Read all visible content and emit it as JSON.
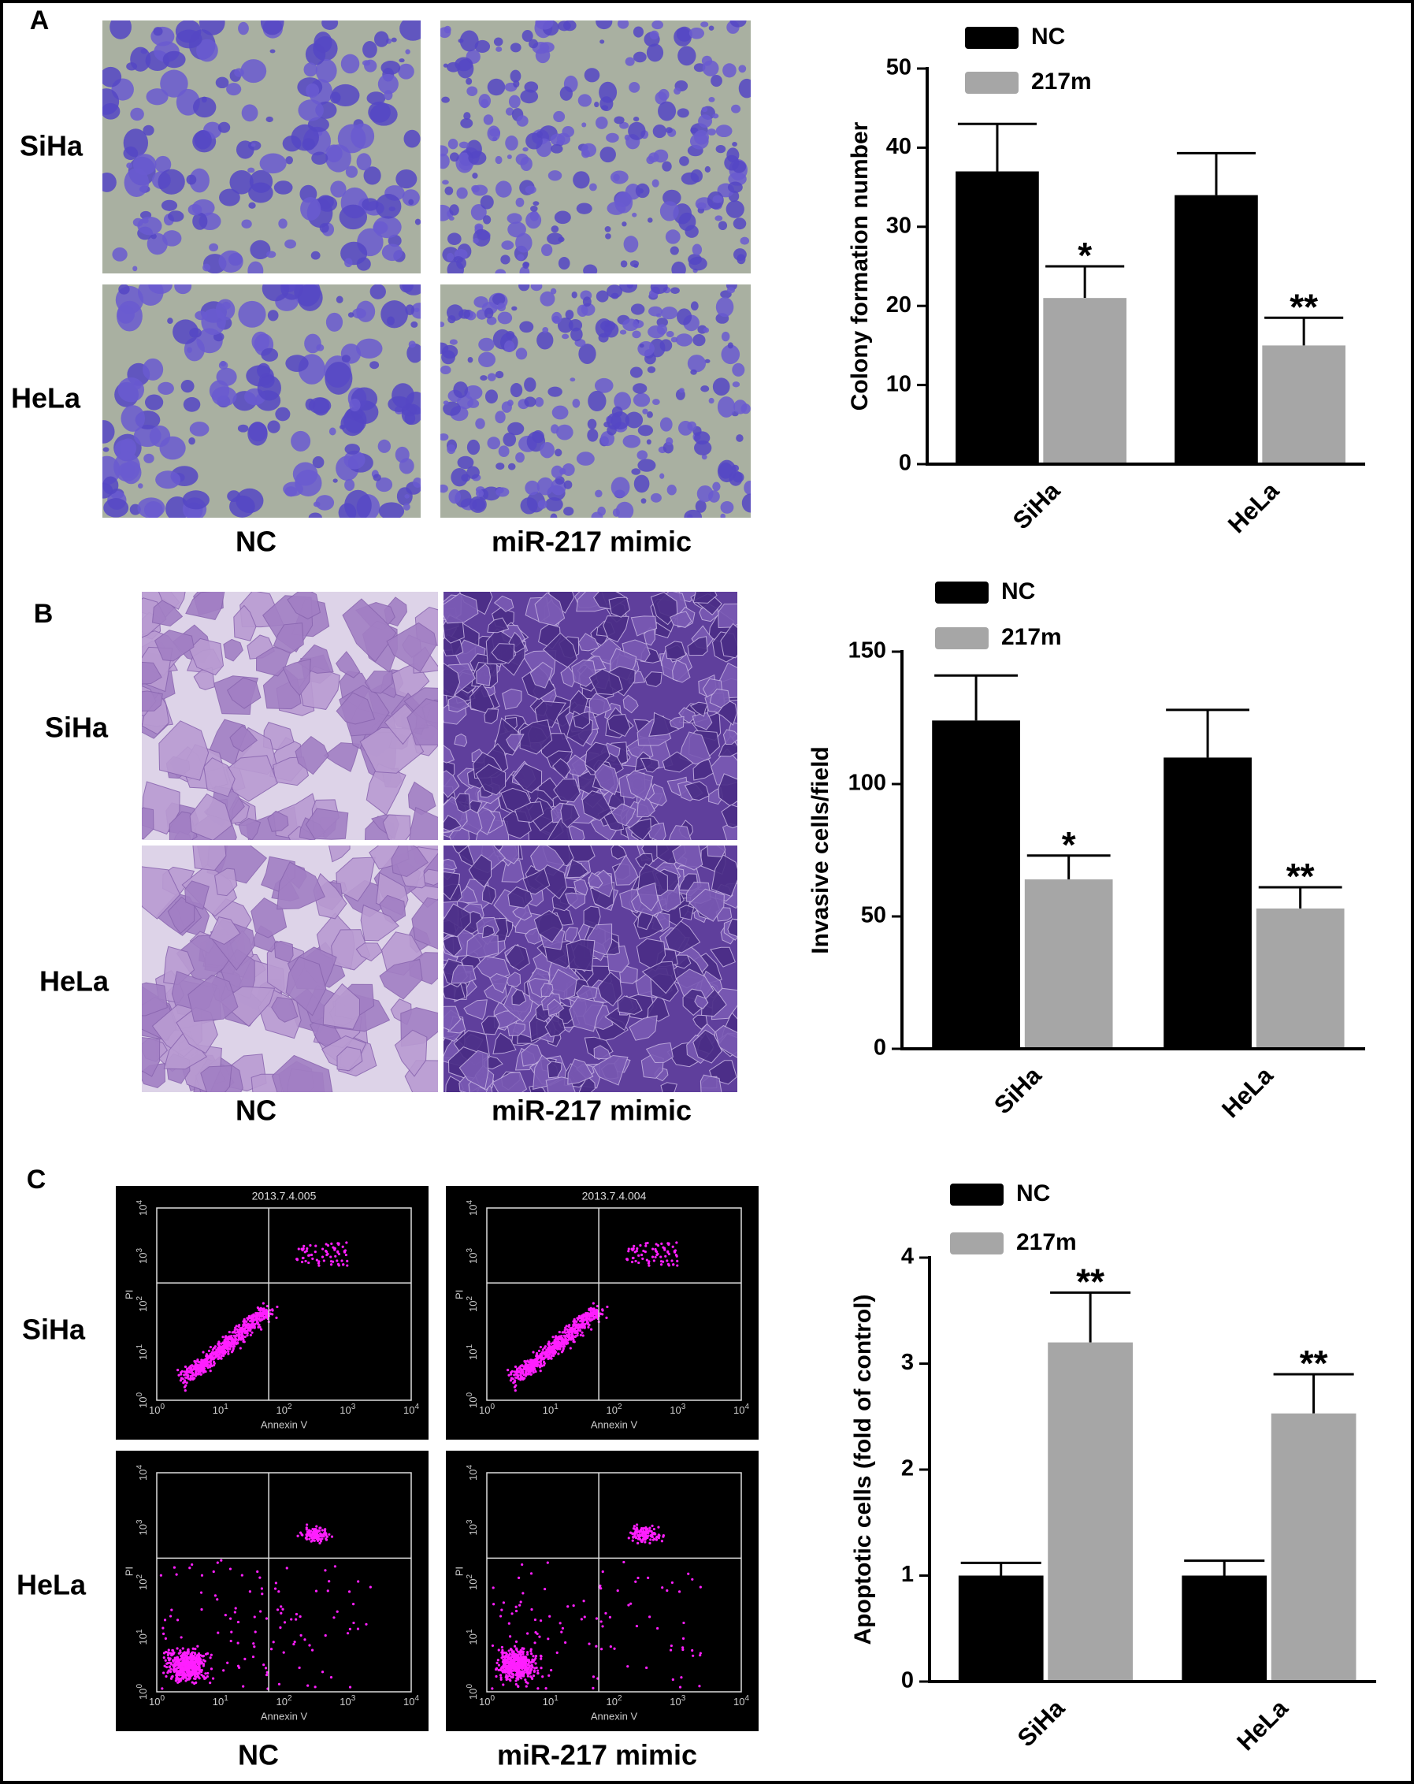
{
  "panels": [
    {
      "letter": "A",
      "rows": [
        "SiHa",
        "HeLa"
      ],
      "columns": [
        "NC",
        "miR-217 mimic"
      ]
    },
    {
      "letter": "B",
      "rows": [
        "SiHa",
        "HeLa"
      ],
      "columns": [
        "NC",
        "miR-217 mimic"
      ]
    },
    {
      "letter": "C",
      "rows": [
        "SiHa",
        "HeLa"
      ],
      "columns": [
        "NC",
        "miR-217 mimic"
      ],
      "flow": {
        "titles": [
          "2013.7.4.005",
          "2013.7.4.004"
        ],
        "x_label": "Annexin V",
        "y_label": "PI",
        "tick_base": "10",
        "tick_exponents": [
          0,
          1,
          2,
          3,
          4
        ]
      }
    }
  ],
  "chart_data": [
    {
      "type": "bar",
      "ylabel": "Colony formation number",
      "categories": [
        "SiHa",
        "HeLa"
      ],
      "series": [
        {
          "name": "NC",
          "color": "#000000",
          "values": [
            37,
            34
          ],
          "errors": [
            6,
            5.3
          ]
        },
        {
          "name": "217m",
          "color": "#a6a6a6",
          "values": [
            21,
            15
          ],
          "errors": [
            4,
            3.5
          ],
          "significance": [
            "*",
            "**"
          ]
        }
      ],
      "ylim": [
        0,
        50
      ],
      "yticks": [
        0,
        10,
        20,
        30,
        40,
        50
      ]
    },
    {
      "type": "bar",
      "ylabel": "Invasive cells/field",
      "categories": [
        "SiHa",
        "HeLa"
      ],
      "series": [
        {
          "name": "NC",
          "color": "#000000",
          "values": [
            124,
            110
          ],
          "errors": [
            17,
            18
          ]
        },
        {
          "name": "217m",
          "color": "#a6a6a6",
          "values": [
            64,
            53
          ],
          "errors": [
            9,
            8
          ],
          "significance": [
            "*",
            "**"
          ]
        }
      ],
      "ylim": [
        0,
        150
      ],
      "yticks": [
        0,
        50,
        100,
        150
      ]
    },
    {
      "type": "bar",
      "ylabel": "Apoptotic cells (fold of control)",
      "categories": [
        "SiHa",
        "HeLa"
      ],
      "series": [
        {
          "name": "NC",
          "color": "#000000",
          "values": [
            1.0,
            1.0
          ],
          "errors": [
            0.12,
            0.14
          ]
        },
        {
          "name": "217m",
          "color": "#a6a6a6",
          "values": [
            3.2,
            2.53
          ],
          "errors": [
            0.47,
            0.37
          ],
          "significance": [
            "**",
            "**"
          ]
        }
      ],
      "ylim": [
        0,
        4
      ],
      "yticks": [
        0,
        1,
        2,
        3,
        4
      ]
    }
  ]
}
